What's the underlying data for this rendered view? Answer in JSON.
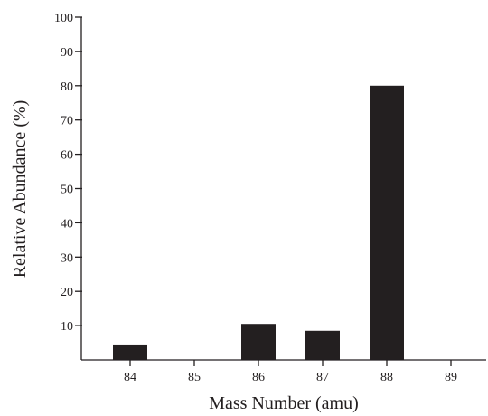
{
  "chart_data": {
    "type": "bar",
    "title": "",
    "xlabel": "Mass Number (amu)",
    "ylabel": "Relative Abundance (%)",
    "categories": [
      "84",
      "85",
      "86",
      "87",
      "88",
      "89"
    ],
    "values": [
      4.5,
      0,
      10.5,
      8.5,
      80,
      0
    ],
    "ylim": [
      0,
      100
    ],
    "yticks": [
      10,
      20,
      30,
      40,
      50,
      60,
      70,
      80,
      90,
      100
    ],
    "grid": false,
    "legend": "none",
    "colors": {
      "bar": "#231f20",
      "axis": "#231f20"
    }
  }
}
